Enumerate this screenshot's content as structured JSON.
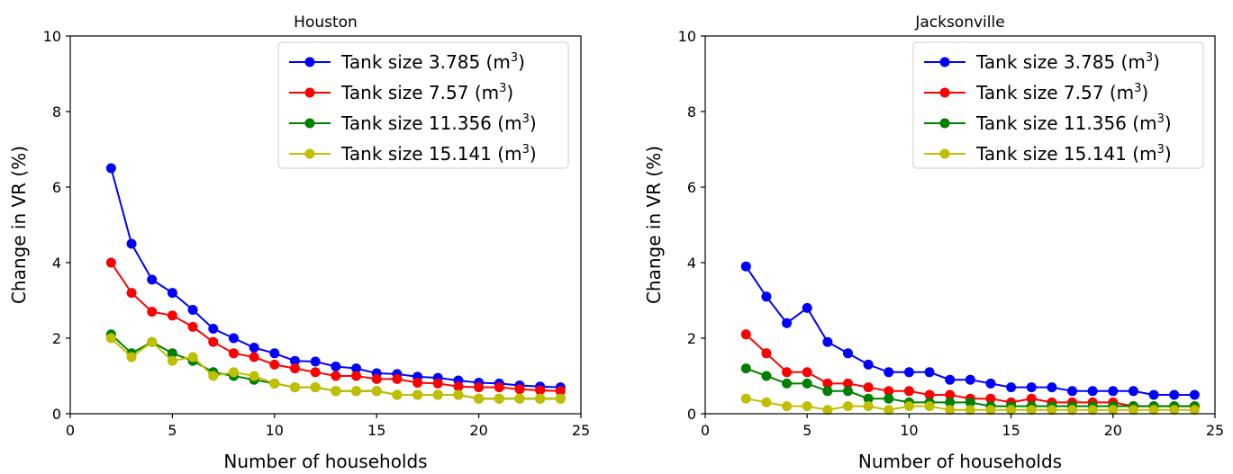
{
  "chart_data": [
    {
      "type": "line",
      "title": "Houston",
      "xlabel": "Number of households",
      "ylabel": "Change in VR (%)",
      "xlim": [
        0,
        25
      ],
      "ylim": [
        0,
        10
      ],
      "xticks": [
        0,
        5,
        10,
        15,
        20,
        25
      ],
      "yticks": [
        0,
        2,
        4,
        6,
        8,
        10
      ],
      "legend_position": "top-right",
      "x": [
        2,
        3,
        4,
        5,
        6,
        7,
        8,
        9,
        10,
        11,
        12,
        13,
        14,
        15,
        16,
        17,
        18,
        19,
        20,
        21,
        22,
        23,
        24
      ],
      "series": [
        {
          "name": "Tank size 3.785",
          "unit": "(m",
          "sup": "3",
          "close": ")",
          "color": "#0000ff",
          "values": [
            6.5,
            4.5,
            3.55,
            3.2,
            2.75,
            2.25,
            2.0,
            1.75,
            1.6,
            1.4,
            1.38,
            1.25,
            1.2,
            1.07,
            1.05,
            0.98,
            0.95,
            0.88,
            0.82,
            0.8,
            0.75,
            0.72,
            0.7
          ]
        },
        {
          "name": "Tank size 7.57",
          "unit": "(m",
          "sup": "3",
          "close": ")",
          "color": "#ff0000",
          "values": [
            4.0,
            3.2,
            2.7,
            2.6,
            2.3,
            1.9,
            1.6,
            1.5,
            1.3,
            1.2,
            1.1,
            1.0,
            1.0,
            0.92,
            0.92,
            0.82,
            0.8,
            0.72,
            0.7,
            0.7,
            0.65,
            0.62,
            0.6
          ]
        },
        {
          "name": "Tank size 11.356",
          "unit": "(m",
          "sup": "3",
          "close": ")",
          "color": "#008000",
          "values": [
            2.1,
            1.6,
            1.9,
            1.6,
            1.4,
            1.1,
            1.0,
            0.9,
            0.8,
            0.7,
            0.7,
            0.6,
            0.6,
            0.6,
            0.5,
            0.5,
            0.5,
            0.5,
            0.4,
            0.4,
            0.4,
            0.4,
            0.4
          ]
        },
        {
          "name": "Tank size 15.141",
          "unit": "(m",
          "sup": "3",
          "close": ")",
          "color": "#bfbf00",
          "values": [
            2.0,
            1.5,
            1.9,
            1.4,
            1.5,
            1.0,
            1.1,
            1.0,
            0.8,
            0.7,
            0.7,
            0.6,
            0.6,
            0.6,
            0.5,
            0.5,
            0.5,
            0.5,
            0.4,
            0.4,
            0.4,
            0.4,
            0.4
          ]
        }
      ]
    },
    {
      "type": "line",
      "title": "Jacksonville",
      "xlabel": "Number of households",
      "ylabel": "Change in VR (%)",
      "xlim": [
        0,
        25
      ],
      "ylim": [
        0,
        10
      ],
      "xticks": [
        0,
        5,
        10,
        15,
        20,
        25
      ],
      "yticks": [
        0,
        2,
        4,
        6,
        8,
        10
      ],
      "legend_position": "top-right",
      "x": [
        2,
        3,
        4,
        5,
        6,
        7,
        8,
        9,
        10,
        11,
        12,
        13,
        14,
        15,
        16,
        17,
        18,
        19,
        20,
        21,
        22,
        23,
        24
      ],
      "series": [
        {
          "name": "Tank size 3.785",
          "unit": "(m",
          "sup": "3",
          "close": ")",
          "color": "#0000ff",
          "values": [
            3.9,
            3.1,
            2.4,
            2.8,
            1.9,
            1.6,
            1.3,
            1.1,
            1.1,
            1.1,
            0.9,
            0.9,
            0.8,
            0.7,
            0.7,
            0.7,
            0.6,
            0.6,
            0.6,
            0.6,
            0.5,
            0.5,
            0.5
          ]
        },
        {
          "name": "Tank size 7.57",
          "unit": "(m",
          "sup": "3",
          "close": ")",
          "color": "#ff0000",
          "values": [
            2.1,
            1.6,
            1.1,
            1.1,
            0.8,
            0.8,
            0.7,
            0.6,
            0.6,
            0.5,
            0.5,
            0.4,
            0.4,
            0.3,
            0.4,
            0.3,
            0.3,
            0.3,
            0.3,
            0.2,
            0.2,
            0.2,
            0.2
          ]
        },
        {
          "name": "Tank size 11.356",
          "unit": "(m",
          "sup": "3",
          "close": ")",
          "color": "#008000",
          "values": [
            1.2,
            1.0,
            0.8,
            0.8,
            0.6,
            0.6,
            0.4,
            0.4,
            0.3,
            0.3,
            0.3,
            0.3,
            0.2,
            0.2,
            0.2,
            0.2,
            0.2,
            0.2,
            0.2,
            0.2,
            0.2,
            0.2,
            0.2
          ]
        },
        {
          "name": "Tank size 15.141",
          "unit": "(m",
          "sup": "3",
          "close": ")",
          "color": "#bfbf00",
          "values": [
            0.4,
            0.3,
            0.2,
            0.2,
            0.1,
            0.2,
            0.2,
            0.1,
            0.2,
            0.2,
            0.1,
            0.1,
            0.1,
            0.1,
            0.1,
            0.1,
            0.1,
            0.1,
            0.1,
            0.1,
            0.1,
            0.1,
            0.1
          ]
        }
      ]
    }
  ]
}
